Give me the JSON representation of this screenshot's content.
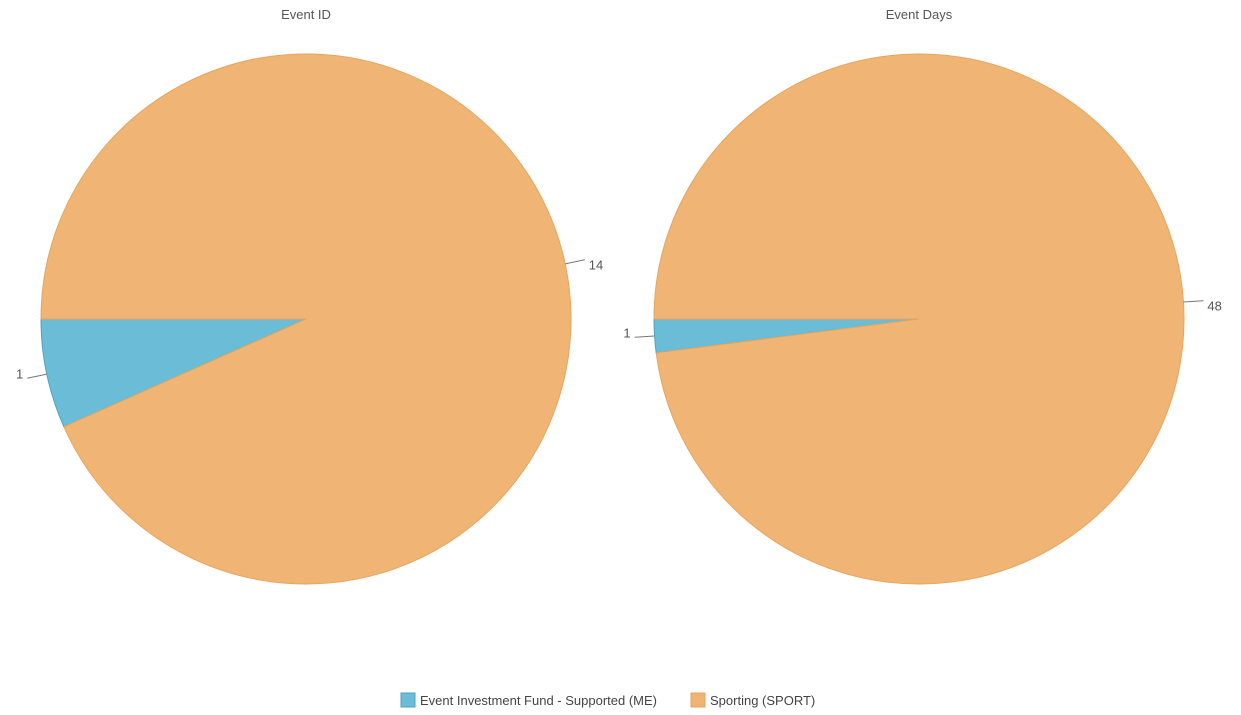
{
  "chart_data": [
    {
      "type": "pie",
      "title": "Event ID",
      "slices": [
        {
          "name": "Event Investment Fund - Supported (ME)",
          "value": 1,
          "label": "1"
        },
        {
          "name": "Sporting (SPORT)",
          "value": 14,
          "label": "14"
        }
      ]
    },
    {
      "type": "pie",
      "title": "Event Days",
      "slices": [
        {
          "name": "Event Investment Fund - Supported (ME)",
          "value": 1,
          "label": "1"
        },
        {
          "name": "Sporting (SPORT)",
          "value": 48,
          "label": "48"
        }
      ]
    }
  ],
  "legend": {
    "placement": "bottom-center",
    "items": [
      {
        "label": "Event Investment Fund - Supported (ME)",
        "color": "#6bbcd6",
        "stroke": "#4fa3c0"
      },
      {
        "label": "Sporting (SPORT)",
        "color": "#f0b574",
        "stroke": "#e6a55e"
      }
    ]
  },
  "colors": {
    "me": "#6bbcd6",
    "me_stroke": "#4fa3c0",
    "sport": "#f0b574",
    "sport_stroke": "#e6a55e"
  }
}
